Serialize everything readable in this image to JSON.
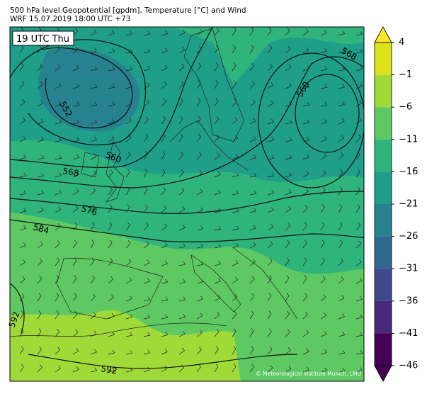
{
  "header": {
    "title": "500 hPa level Geopotential [gpdm], Temperature [°C] and Wind",
    "subtitle": "WRF 15.07.2019 18:00 UTC +73"
  },
  "map": {
    "time_label": "19 UTC Thu",
    "contour_labels": [
      "552",
      "560",
      "560",
      "568",
      "568",
      "576",
      "584",
      "592",
      "592"
    ],
    "copyright": "© Meteorological Institute Munich, LMU"
  },
  "colorbar": {
    "ticks": [
      {
        "value": 4,
        "label": "4"
      },
      {
        "value": -1,
        "label": "−1"
      },
      {
        "value": -6,
        "label": "−6"
      },
      {
        "value": -11,
        "label": "−11"
      },
      {
        "value": -16,
        "label": "−16"
      },
      {
        "value": -21,
        "label": "−21"
      },
      {
        "value": -26,
        "label": "−26"
      },
      {
        "value": -31,
        "label": "−31"
      },
      {
        "value": -36,
        "label": "−36"
      },
      {
        "value": -41,
        "label": "−41"
      },
      {
        "value": -46,
        "label": "−46"
      }
    ],
    "colors": [
      "#dde318",
      "#a0da39",
      "#5ec962",
      "#2fb47c",
      "#1f9e89",
      "#26828e",
      "#31688e",
      "#3e4989",
      "#482878",
      "#440154"
    ],
    "over_color": "#fde725",
    "under_color": "#440154"
  }
}
